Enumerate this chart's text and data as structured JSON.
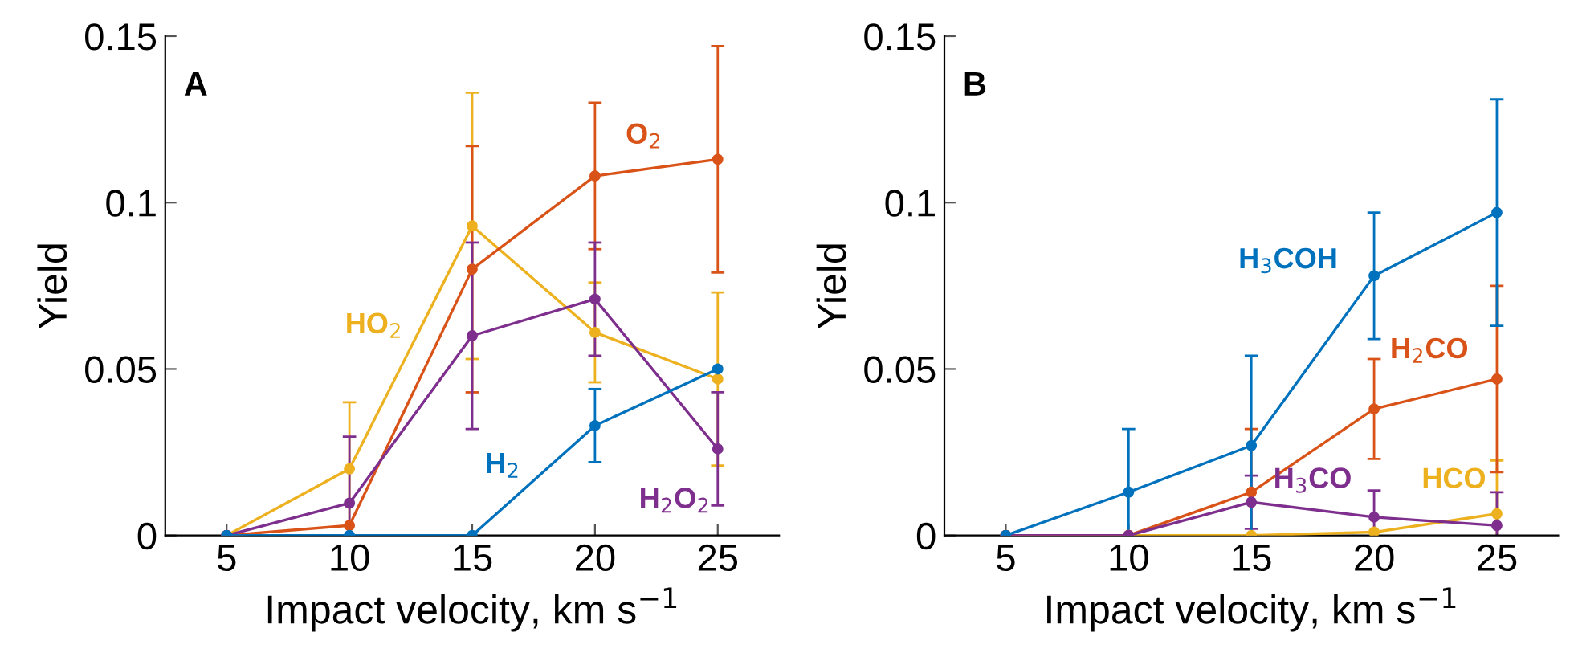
{
  "chart_data": [
    {
      "type": "line",
      "xlabel": "Impact velocity, km s$^{−1}$",
      "ylabel": "Yield",
      "x": [
        5,
        10,
        15,
        20,
        25
      ],
      "xlim": [
        2.5,
        27.5
      ],
      "xticks": [
        5,
        10,
        15,
        20,
        25
      ],
      "ylim": [
        0,
        0.15
      ],
      "yticks": [
        0,
        0.05,
        0.1,
        0.15
      ],
      "marker": "circle",
      "grid": false,
      "legend": false,
      "series": [
        {
          "name": "HO$_{2}$",
          "color": "#edb120",
          "values": [
            0,
            0.02,
            0.093,
            0.061,
            0.047
          ],
          "errors": [
            null,
            0.02,
            0.04,
            0.015,
            0.026
          ]
        },
        {
          "name": "O$_{2}$",
          "color": "#d95319",
          "values": [
            0,
            0.003,
            0.08,
            0.108,
            0.113
          ],
          "errors": [
            null,
            null,
            0.037,
            0.022,
            0.034
          ]
        },
        {
          "name": "H$_{2}$O$_{2}$",
          "color": "#7e2f8e",
          "values": [
            0,
            0.0097,
            0.06,
            0.071,
            0.026
          ],
          "errors": [
            null,
            0.02,
            0.028,
            0.017,
            0.017
          ]
        },
        {
          "name": "H$_{2}$",
          "color": "#0072bd",
          "values": [
            0,
            0,
            0,
            0.033,
            0.05
          ],
          "errors": [
            null,
            null,
            null,
            0.011,
            null
          ]
        }
      ],
      "annotations": [
        "A"
      ]
    },
    {
      "type": "line",
      "xlabel": "Impact velocity, km s$^{−1}$",
      "ylabel": "Yield",
      "x": [
        5,
        10,
        15,
        20,
        25
      ],
      "xlim": [
        2.5,
        27.5
      ],
      "xticks": [
        5,
        10,
        15,
        20,
        25
      ],
      "ylim": [
        0,
        0.15
      ],
      "yticks": [
        0,
        0.05,
        0.1,
        0.15
      ],
      "marker": "circle",
      "grid": false,
      "legend": false,
      "series": [
        {
          "name": "HCO",
          "color": "#edb120",
          "values": [
            0,
            0,
            0,
            0.001,
            0.0065
          ],
          "errors": [
            null,
            null,
            null,
            null,
            0.016
          ]
        },
        {
          "name": "H$_{2}$CO",
          "color": "#d95319",
          "values": [
            0,
            0,
            0.013,
            0.038,
            0.047
          ],
          "errors": [
            null,
            null,
            [
              0,
              0.032
            ],
            0.015,
            0.028
          ]
        },
        {
          "name": "H$_{3}$CO",
          "color": "#7e2f8e",
          "values": [
            0,
            0,
            0.01,
            0.0055,
            0.003
          ],
          "errors": [
            null,
            null,
            0.008,
            0.008,
            0.01
          ]
        },
        {
          "name": "H$_{3}$COH",
          "color": "#0072bd",
          "values": [
            0,
            0.013,
            0.027,
            0.078,
            0.097
          ],
          "errors": [
            null,
            0.019,
            0.027,
            0.019,
            0.034
          ]
        }
      ],
      "annotations": [
        "B"
      ]
    }
  ]
}
